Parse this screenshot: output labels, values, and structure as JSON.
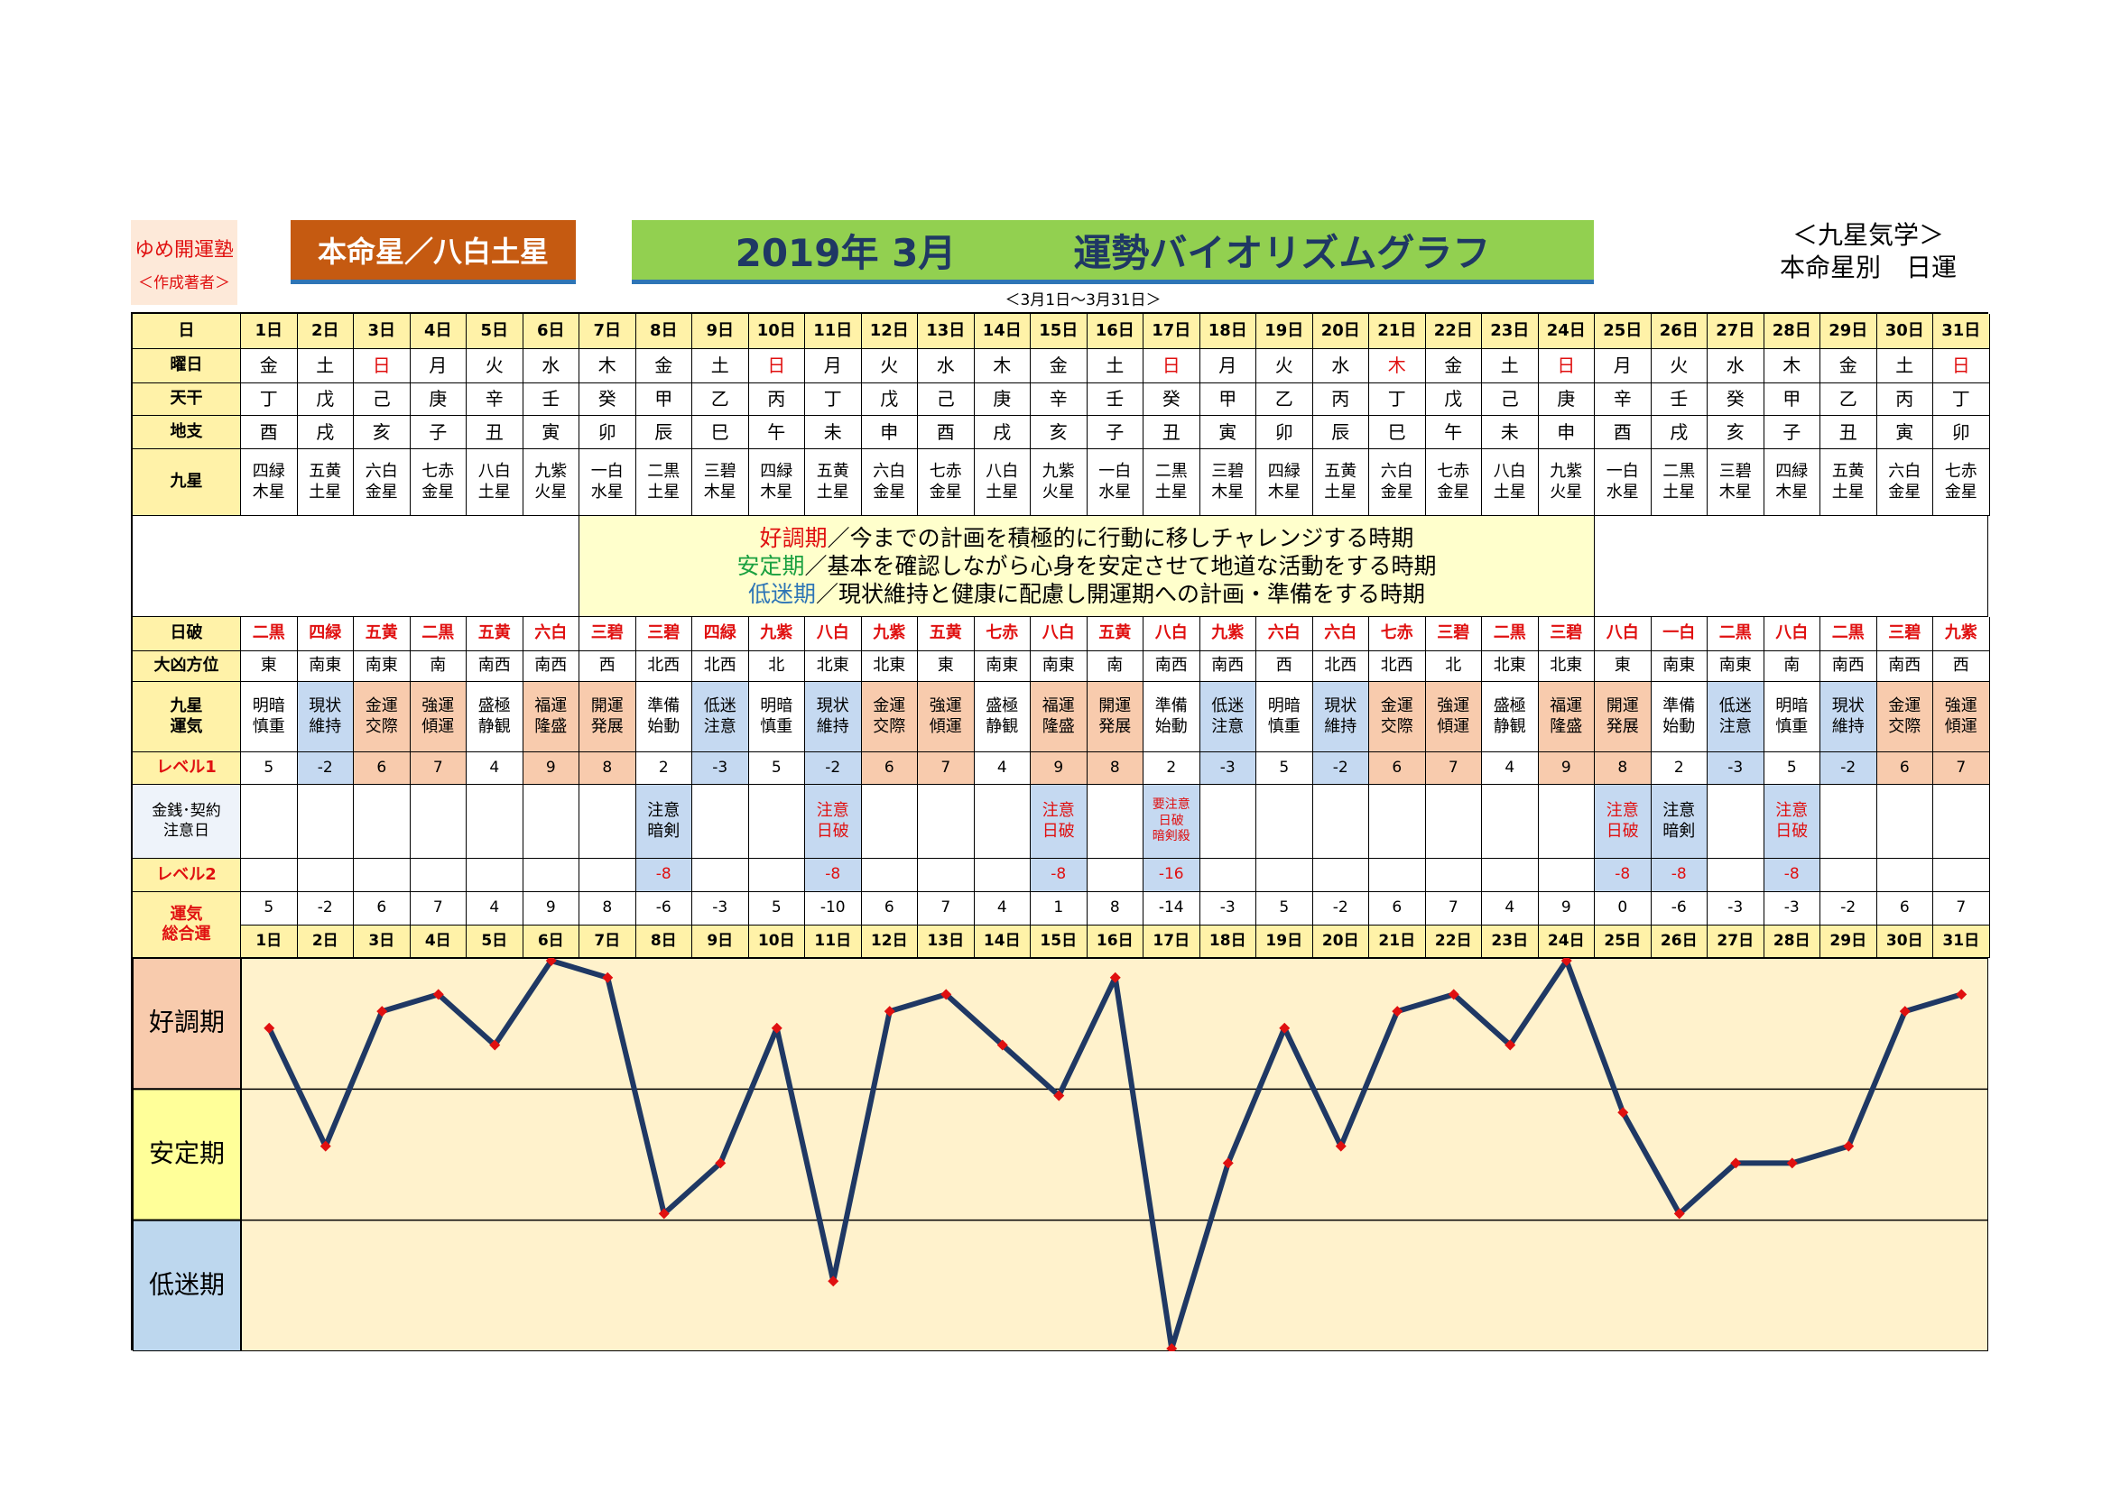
{
  "header": {
    "org": "ゆめ開運塾",
    "org_sub": "＜作成著者＞",
    "star": "本命星／八白土星",
    "title_month": "2019年 3月",
    "title": "運勢バイオリズムグラフ",
    "range": "＜3月1日～3月31日＞",
    "right1": "＜九星気学＞",
    "right2": "本命星別　日運"
  },
  "legend": [
    {
      "label": "好調期",
      "text": "／今までの計画を積極的に行動に移しチャレンジする時期",
      "color": "#e01010"
    },
    {
      "label": "安定期",
      "text": "／基本を確認しながら心身を安定させて地道な活動をする時期",
      "color": "#1aa040"
    },
    {
      "label": "低迷期",
      "text": "／現状維持と健康に配慮し開運期への計画・準備をする時期",
      "color": "#2e75b6"
    }
  ],
  "rows": {
    "day": "日",
    "weekday": "曜日",
    "tenkan": "天干",
    "chishi": "地支",
    "kyusei": "九星",
    "nippa": "日破",
    "direction": "大凶方位",
    "fortune": "九星\n運気",
    "level1": "レベル1",
    "caution": "金銭･契約\n注意日",
    "level2": "レベル2",
    "total": "運気\n総合運"
  },
  "table": {
    "weekday": [
      "金",
      "土",
      "日",
      "月",
      "火",
      "水",
      "木",
      "金",
      "土",
      "日",
      "月",
      "火",
      "水",
      "木",
      "金",
      "土",
      "日",
      "月",
      "火",
      "水",
      "木",
      "金",
      "土",
      "日",
      "月",
      "火",
      "水",
      "木",
      "金",
      "土",
      "日"
    ],
    "weekday_colors": [
      "#000",
      "#000",
      "#e01010",
      "#000",
      "#000",
      "#000",
      "#000",
      "#000",
      "#000",
      "#e01010",
      "#000",
      "#000",
      "#000",
      "#000",
      "#000",
      "#000",
      "#e01010",
      "#000",
      "#000",
      "#000",
      "#e01010",
      "#000",
      "#000",
      "#e01010",
      "#000",
      "#000",
      "#000",
      "#000",
      "#000",
      "#000",
      "#e01010"
    ],
    "tenkan": [
      "丁",
      "戊",
      "己",
      "庚",
      "辛",
      "壬",
      "癸",
      "甲",
      "乙",
      "丙",
      "丁",
      "戊",
      "己",
      "庚",
      "辛",
      "壬",
      "癸",
      "甲",
      "乙",
      "丙",
      "丁",
      "戊",
      "己",
      "庚",
      "辛",
      "壬",
      "癸",
      "甲",
      "乙",
      "丙",
      "丁"
    ],
    "chishi": [
      "酉",
      "戌",
      "亥",
      "子",
      "丑",
      "寅",
      "卯",
      "辰",
      "巳",
      "午",
      "未",
      "申",
      "酉",
      "戌",
      "亥",
      "子",
      "丑",
      "寅",
      "卯",
      "辰",
      "巳",
      "午",
      "未",
      "申",
      "酉",
      "戌",
      "亥",
      "子",
      "丑",
      "寅",
      "卯"
    ],
    "kyusei": [
      "四緑\n木星",
      "五黄\n土星",
      "六白\n金星",
      "七赤\n金星",
      "八白\n土星",
      "九紫\n火星",
      "一白\n水星",
      "二黒\n土星",
      "三碧\n木星",
      "四緑\n木星",
      "五黄\n土星",
      "六白\n金星",
      "七赤\n金星",
      "八白\n土星",
      "九紫\n火星",
      "一白\n水星",
      "二黒\n土星",
      "三碧\n木星",
      "四緑\n木星",
      "五黄\n土星",
      "六白\n金星",
      "七赤\n金星",
      "八白\n土星",
      "九紫\n火星",
      "一白\n水星",
      "二黒\n土星",
      "三碧\n木星",
      "四緑\n木星",
      "五黄\n土星",
      "六白\n金星",
      "七赤\n金星"
    ],
    "nippa": [
      "二黒",
      "四緑",
      "五黄",
      "二黒",
      "五黄",
      "六白",
      "三碧",
      "三碧",
      "四緑",
      "九紫",
      "八白",
      "九紫",
      "五黄",
      "七赤",
      "八白",
      "五黄",
      "八白",
      "九紫",
      "六白",
      "六白",
      "七赤",
      "三碧",
      "二黒",
      "三碧",
      "八白",
      "一白",
      "二黒",
      "八白",
      "二黒",
      "三碧",
      "九紫"
    ],
    "direction": [
      "東",
      "南東",
      "南東",
      "南",
      "南西",
      "南西",
      "西",
      "北西",
      "北西",
      "北",
      "北東",
      "北東",
      "東",
      "南東",
      "南東",
      "南",
      "南西",
      "南西",
      "西",
      "北西",
      "北西",
      "北",
      "北東",
      "北東",
      "東",
      "南東",
      "南東",
      "南",
      "南西",
      "南西",
      "西"
    ],
    "fortune": [
      "明暗\n慎重",
      "現状\n維持",
      "金運\n交際",
      "強運\n傾運",
      "盛極\n静観",
      "福運\n隆盛",
      "開運\n発展",
      "準備\n始動",
      "低迷\n注意",
      "明暗\n慎重",
      "現状\n維持",
      "金運\n交際",
      "強運\n傾運",
      "盛極\n静観",
      "福運\n隆盛",
      "開運\n発展",
      "準備\n始動",
      "低迷\n注意",
      "明暗\n慎重",
      "現状\n維持",
      "金運\n交際",
      "強運\n傾運",
      "盛極\n静観",
      "福運\n隆盛",
      "開運\n発展",
      "準備\n始動",
      "低迷\n注意",
      "明暗\n慎重",
      "現状\n維持",
      "金運\n交際",
      "強運\n傾運"
    ],
    "fortune_colors": [
      "#fff",
      "#c5d9f1",
      "#f8cbad",
      "#f8cbad",
      "#fff",
      "#f8cbad",
      "#f8cbad",
      "#fff",
      "#c5d9f1",
      "#fff",
      "#c5d9f1",
      "#f8cbad",
      "#f8cbad",
      "#fff",
      "#f8cbad",
      "#f8cbad",
      "#fff",
      "#c5d9f1",
      "#fff",
      "#c5d9f1",
      "#f8cbad",
      "#f8cbad",
      "#fff",
      "#f8cbad",
      "#f8cbad",
      "#fff",
      "#c5d9f1",
      "#fff",
      "#c5d9f1",
      "#f8cbad",
      "#f8cbad"
    ],
    "level1": [
      5,
      -2,
      6,
      7,
      4,
      9,
      8,
      2,
      -3,
      5,
      -2,
      6,
      7,
      4,
      9,
      8,
      2,
      -3,
      5,
      -2,
      6,
      7,
      4,
      9,
      8,
      2,
      -3,
      5,
      -2,
      6,
      7
    ],
    "caution": [
      null,
      null,
      null,
      null,
      null,
      null,
      null,
      {
        "text": "注意\n暗剣",
        "color": "#000"
      },
      null,
      null,
      {
        "text": "注意\n日破",
        "color": "#e01010"
      },
      null,
      null,
      null,
      {
        "text": "注意\n日破",
        "color": "#e01010"
      },
      null,
      {
        "text": "要注意\n日破\n暗剣殺",
        "color": "#e01010"
      },
      null,
      null,
      null,
      null,
      null,
      null,
      null,
      {
        "text": "注意\n日破",
        "color": "#e01010"
      },
      {
        "text": "注意\n暗剣",
        "color": "#000"
      },
      null,
      {
        "text": "注意\n日破",
        "color": "#e01010"
      },
      null,
      null,
      null
    ],
    "level2": [
      null,
      null,
      null,
      null,
      null,
      null,
      null,
      -8,
      null,
      null,
      -8,
      null,
      null,
      null,
      -8,
      null,
      -16,
      null,
      null,
      null,
      null,
      null,
      null,
      null,
      -8,
      -8,
      null,
      -8,
      null,
      null,
      null
    ]
  },
  "chart_data": {
    "type": "line",
    "x": [
      "1日",
      "2日",
      "3日",
      "4日",
      "5日",
      "6日",
      "7日",
      "8日",
      "9日",
      "10日",
      "11日",
      "12日",
      "13日",
      "14日",
      "15日",
      "16日",
      "17日",
      "18日",
      "19日",
      "20日",
      "21日",
      "22日",
      "23日",
      "24日",
      "25日",
      "26日",
      "27日",
      "28日",
      "29日",
      "30日",
      "31日"
    ],
    "values": [
      5,
      -2,
      6,
      7,
      4,
      9,
      8,
      -6,
      -3,
      5,
      -10,
      6,
      7,
      4,
      1,
      8,
      -14,
      -3,
      5,
      -2,
      6,
      7,
      4,
      9,
      0,
      -6,
      -3,
      -3,
      -2,
      6,
      7
    ],
    "ylim": [
      -14,
      9
    ],
    "bands": [
      "好調期",
      "安定期",
      "低迷期"
    ],
    "band_colors": [
      "#f8cbad",
      "#ffff99",
      "#bdd7ee"
    ],
    "color": "#1f3864",
    "point_color": "#e01010"
  }
}
